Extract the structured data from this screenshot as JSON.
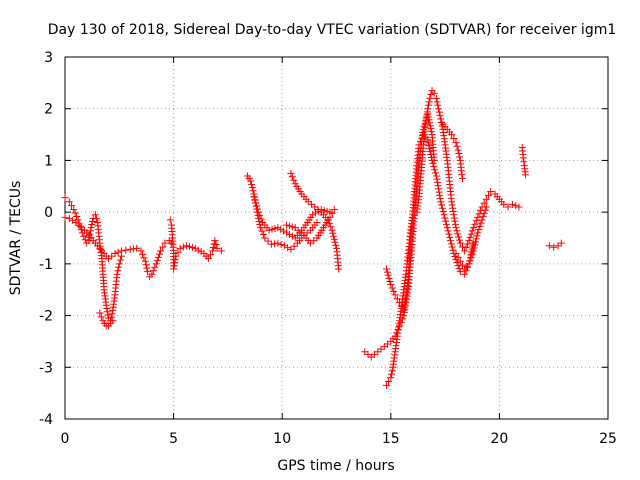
{
  "chart_data": {
    "type": "scatter",
    "title": "Day 130 of 2018, Sidereal Day-to-day VTEC variation (SDTVAR) for receiver igm1",
    "xlabel": "GPS time / hours",
    "ylabel": "SDTVAR / TECUs",
    "xlim": [
      0,
      25
    ],
    "ylim": [
      -4,
      3
    ],
    "xticks": [
      "0",
      "5",
      "10",
      "15",
      "20",
      "25"
    ],
    "yticks": [
      "-4",
      "-3",
      "-2",
      "-1",
      "0",
      "1",
      "2",
      "3"
    ],
    "grid": true,
    "marker": "+",
    "colors": {
      "series": "#ff0000",
      "grid": "#a0a0a0",
      "axis": "#000000"
    },
    "series": [
      {
        "name": "s1",
        "points": [
          [
            0.0,
            -0.1
          ],
          [
            0.2,
            -0.12
          ],
          [
            0.5,
            -0.2
          ],
          [
            0.9,
            -0.35
          ],
          [
            1.2,
            -0.5
          ],
          [
            1.5,
            -0.65
          ],
          [
            1.8,
            -0.8
          ],
          [
            2.0,
            -0.9
          ]
        ]
      },
      {
        "name": "s2",
        "points": [
          [
            0.0,
            0.28
          ],
          [
            0.2,
            0.2
          ],
          [
            0.4,
            0.05
          ],
          [
            0.6,
            -0.15
          ],
          [
            0.8,
            -0.4
          ],
          [
            1.0,
            -0.6
          ],
          [
            1.1,
            -0.55
          ],
          [
            1.2,
            -0.3
          ],
          [
            1.3,
            -0.12
          ],
          [
            1.4,
            -0.05
          ],
          [
            1.5,
            -0.2
          ],
          [
            1.6,
            -0.6
          ],
          [
            1.7,
            -0.9
          ],
          [
            1.75,
            -1.2
          ],
          [
            1.8,
            -1.5
          ],
          [
            1.9,
            -1.8
          ],
          [
            2.0,
            -2.05
          ],
          [
            2.1,
            -2.15
          ],
          [
            2.2,
            -2.1
          ]
        ]
      },
      {
        "name": "s3",
        "points": [
          [
            1.6,
            -1.95
          ],
          [
            1.75,
            -2.1
          ],
          [
            1.9,
            -2.2
          ],
          [
            2.0,
            -2.2
          ],
          [
            2.1,
            -2.1
          ],
          [
            2.2,
            -1.9
          ],
          [
            2.3,
            -1.6
          ],
          [
            2.4,
            -1.2
          ],
          [
            2.5,
            -1.0
          ],
          [
            2.6,
            -0.85
          ]
        ]
      },
      {
        "name": "s4",
        "points": [
          [
            2.0,
            -0.9
          ],
          [
            2.3,
            -0.8
          ],
          [
            2.6,
            -0.75
          ],
          [
            3.0,
            -0.72
          ],
          [
            3.3,
            -0.7
          ],
          [
            3.5,
            -0.75
          ],
          [
            3.7,
            -0.95
          ],
          [
            3.8,
            -1.15
          ],
          [
            3.9,
            -1.25
          ],
          [
            4.0,
            -1.2
          ],
          [
            4.2,
            -1.0
          ],
          [
            4.4,
            -0.75
          ],
          [
            4.6,
            -0.6
          ],
          [
            4.8,
            -0.55
          ],
          [
            4.9,
            -0.6
          ]
        ]
      },
      {
        "name": "s5",
        "points": [
          [
            4.85,
            -0.15
          ],
          [
            4.9,
            -0.25
          ],
          [
            4.95,
            -0.5
          ],
          [
            5.0,
            -0.8
          ],
          [
            5.0,
            -1.1
          ],
          [
            5.1,
            -0.85
          ],
          [
            5.3,
            -0.7
          ],
          [
            5.6,
            -0.65
          ],
          [
            6.0,
            -0.7
          ],
          [
            6.4,
            -0.8
          ],
          [
            6.6,
            -0.9
          ],
          [
            6.8,
            -0.75
          ],
          [
            6.9,
            -0.55
          ],
          [
            7.0,
            -0.7
          ],
          [
            7.2,
            -0.75
          ]
        ]
      },
      {
        "name": "s6",
        "points": [
          [
            8.4,
            0.7
          ],
          [
            8.55,
            0.6
          ],
          [
            8.7,
            0.35
          ],
          [
            8.85,
            0.0
          ],
          [
            9.0,
            -0.3
          ],
          [
            9.2,
            -0.5
          ],
          [
            9.5,
            -0.62
          ],
          [
            9.8,
            -0.6
          ],
          [
            10.1,
            -0.65
          ],
          [
            10.4,
            -0.72
          ],
          [
            10.7,
            -0.6
          ],
          [
            11.0,
            -0.45
          ],
          [
            11.3,
            -0.35
          ],
          [
            11.6,
            -0.2
          ]
        ]
      },
      {
        "name": "s7",
        "points": [
          [
            8.7,
            0.3
          ],
          [
            8.9,
            0.0
          ],
          [
            9.1,
            -0.2
          ],
          [
            9.4,
            -0.35
          ],
          [
            9.8,
            -0.3
          ],
          [
            10.2,
            -0.4
          ],
          [
            10.6,
            -0.5
          ],
          [
            11.0,
            -0.3
          ],
          [
            11.4,
            -0.05
          ],
          [
            11.8,
            0.05
          ],
          [
            12.2,
            0.0
          ]
        ]
      },
      {
        "name": "s8",
        "points": [
          [
            10.4,
            0.75
          ],
          [
            10.6,
            0.55
          ],
          [
            10.9,
            0.35
          ],
          [
            11.2,
            0.2
          ],
          [
            11.5,
            0.1
          ],
          [
            11.8,
            0.0
          ],
          [
            12.1,
            -0.15
          ],
          [
            12.3,
            -0.35
          ],
          [
            12.5,
            -0.7
          ],
          [
            12.6,
            -1.1
          ]
        ]
      },
      {
        "name": "s9",
        "points": [
          [
            10.2,
            -0.25
          ],
          [
            10.6,
            -0.3
          ],
          [
            11.0,
            -0.45
          ],
          [
            11.3,
            -0.6
          ],
          [
            11.6,
            -0.5
          ],
          [
            11.9,
            -0.3
          ],
          [
            12.2,
            -0.1
          ],
          [
            12.4,
            0.05
          ]
        ]
      },
      {
        "name": "s10",
        "points": [
          [
            13.8,
            -2.7
          ],
          [
            14.1,
            -2.8
          ],
          [
            14.4,
            -2.7
          ],
          [
            14.7,
            -2.6
          ],
          [
            15.0,
            -2.5
          ],
          [
            15.2,
            -2.4
          ],
          [
            15.4,
            -2.2
          ],
          [
            15.6,
            -2.0
          ],
          [
            15.8,
            -1.5
          ],
          [
            15.9,
            -1.0
          ],
          [
            16.0,
            -0.5
          ],
          [
            16.1,
            0.0
          ],
          [
            16.2,
            0.5
          ],
          [
            16.3,
            1.0
          ],
          [
            16.5,
            1.6
          ],
          [
            16.7,
            1.9
          ],
          [
            16.9,
            1.5
          ],
          [
            17.0,
            1.0
          ]
        ]
      },
      {
        "name": "s11",
        "points": [
          [
            14.8,
            -1.1
          ],
          [
            15.0,
            -1.4
          ],
          [
            15.2,
            -1.6
          ],
          [
            15.4,
            -1.75
          ],
          [
            15.6,
            -1.9
          ],
          [
            15.8,
            -1.3
          ],
          [
            15.9,
            -0.6
          ],
          [
            16.0,
            -0.1
          ],
          [
            16.1,
            0.4
          ],
          [
            16.2,
            0.9
          ],
          [
            16.3,
            1.3
          ],
          [
            16.5,
            1.5
          ],
          [
            16.7,
            1.4
          ],
          [
            16.9,
            1.0
          ],
          [
            17.1,
            0.7
          ],
          [
            17.3,
            0.2
          ],
          [
            17.6,
            -0.3
          ],
          [
            17.9,
            -0.8
          ],
          [
            18.2,
            -1.15
          ],
          [
            18.4,
            -1.2
          ],
          [
            18.6,
            -1.0
          ],
          [
            18.8,
            -0.6
          ]
        ]
      },
      {
        "name": "s12",
        "points": [
          [
            14.8,
            -3.35
          ],
          [
            15.0,
            -3.2
          ],
          [
            15.1,
            -3.0
          ],
          [
            15.2,
            -2.7
          ],
          [
            15.3,
            -2.4
          ],
          [
            15.4,
            -2.1
          ],
          [
            15.5,
            -1.8
          ],
          [
            15.6,
            -1.5
          ],
          [
            15.7,
            -1.2
          ],
          [
            15.8,
            -0.8
          ],
          [
            15.9,
            -0.4
          ],
          [
            16.0,
            -0.1
          ]
        ]
      },
      {
        "name": "s13",
        "points": [
          [
            16.2,
            0.0
          ],
          [
            16.3,
            0.3
          ],
          [
            16.4,
            0.8
          ],
          [
            16.5,
            1.3
          ],
          [
            16.6,
            1.7
          ],
          [
            16.7,
            2.0
          ],
          [
            16.8,
            2.2
          ],
          [
            16.9,
            2.35
          ],
          [
            17.0,
            2.3
          ],
          [
            17.1,
            2.2
          ],
          [
            17.2,
            2.0
          ],
          [
            17.3,
            1.8
          ],
          [
            17.4,
            1.6
          ],
          [
            17.5,
            1.3
          ],
          [
            17.6,
            1.0
          ],
          [
            17.7,
            0.6
          ],
          [
            17.8,
            0.2
          ],
          [
            18.0,
            -0.3
          ],
          [
            18.2,
            -0.6
          ],
          [
            18.4,
            -0.75
          ],
          [
            18.6,
            -0.55
          ],
          [
            18.8,
            -0.3
          ],
          [
            19.0,
            -0.1
          ],
          [
            19.2,
            0.1
          ],
          [
            19.4,
            0.25
          ],
          [
            19.6,
            0.4
          ],
          [
            19.8,
            0.35
          ],
          [
            20.0,
            0.25
          ],
          [
            20.2,
            0.15
          ],
          [
            20.4,
            0.1
          ],
          [
            20.6,
            0.15
          ],
          [
            20.9,
            0.1
          ]
        ]
      },
      {
        "name": "s14",
        "points": [
          [
            17.4,
            1.7
          ],
          [
            17.6,
            1.6
          ],
          [
            17.8,
            1.5
          ],
          [
            18.0,
            1.35
          ],
          [
            18.1,
            1.2
          ],
          [
            18.2,
            1.0
          ],
          [
            18.25,
            0.8
          ],
          [
            18.3,
            0.65
          ]
        ]
      },
      {
        "name": "s15",
        "points": [
          [
            18.0,
            -0.8
          ],
          [
            18.2,
            -0.95
          ],
          [
            18.4,
            -1.1
          ],
          [
            18.6,
            -1.0
          ],
          [
            18.8,
            -0.75
          ],
          [
            19.0,
            -0.4
          ],
          [
            19.2,
            -0.15
          ],
          [
            19.4,
            0.1
          ]
        ]
      },
      {
        "name": "s16",
        "points": [
          [
            21.05,
            1.25
          ],
          [
            21.1,
            1.05
          ],
          [
            21.15,
            0.9
          ],
          [
            21.2,
            0.72
          ]
        ]
      },
      {
        "name": "s17",
        "points": [
          [
            22.3,
            -0.65
          ],
          [
            22.5,
            -0.68
          ],
          [
            22.7,
            -0.65
          ],
          [
            22.85,
            -0.6
          ]
        ]
      }
    ]
  }
}
